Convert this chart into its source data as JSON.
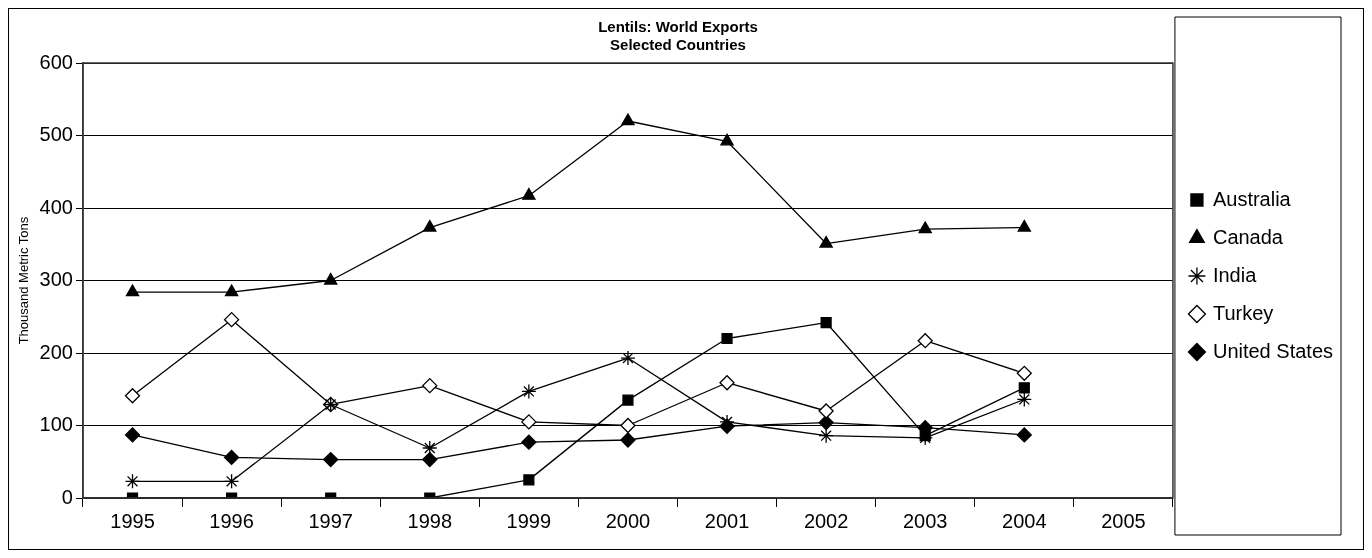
{
  "chart_data": {
    "type": "line",
    "title": "Lentils: World Exports",
    "subtitle": "Selected Countries",
    "ylabel": "Thousand Metric Tons",
    "categories": [
      "1995",
      "1996",
      "1997",
      "1998",
      "1999",
      "2000",
      "2001",
      "2002",
      "2003",
      "2004",
      "2005"
    ],
    "series": [
      {
        "name": "Australia",
        "color": "#000000",
        "marker": "square",
        "values": [
          0,
          0,
          0,
          0,
          25,
          135,
          220,
          242,
          86,
          152,
          null
        ]
      },
      {
        "name": "Canada",
        "color": "#000000",
        "marker": "triangle",
        "values": [
          284,
          284,
          300,
          373,
          417,
          520,
          492,
          351,
          371,
          373,
          null
        ]
      },
      {
        "name": "India",
        "color": "#000000",
        "marker": "cross",
        "values": [
          23,
          23,
          129,
          69,
          147,
          193,
          105,
          86,
          83,
          136,
          null
        ]
      },
      {
        "name": "Turkey",
        "color": "#000000",
        "marker": "diamond",
        "values": [
          141,
          246,
          129,
          155,
          105,
          100,
          159,
          120,
          217,
          172,
          null
        ]
      },
      {
        "name": "United States",
        "color": "#000000",
        "marker": "diamond",
        "values": [
          87,
          56,
          53,
          53,
          77,
          80,
          99,
          104,
          97,
          87,
          null
        ]
      }
    ],
    "ylim": [
      0,
      600
    ],
    "yticks": [
      0,
      100,
      200,
      300,
      400,
      500,
      600
    ],
    "grid": "y",
    "legend": "right",
    "line_style": "solid"
  }
}
